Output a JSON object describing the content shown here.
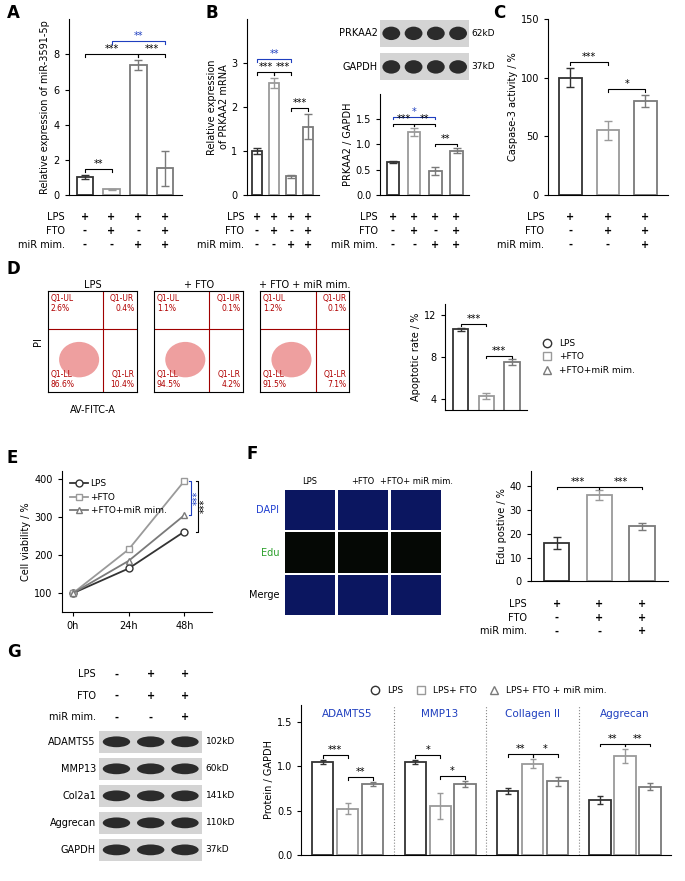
{
  "chart_data": [
    {
      "panel": "A",
      "type": "bar",
      "ylabel": "Relative expression of miR-3591-5p",
      "categories": [
        null,
        null,
        null,
        null
      ],
      "values": [
        1.0,
        0.3,
        7.4,
        1.5
      ],
      "errors": [
        0.12,
        0.05,
        0.3,
        1.0
      ],
      "colors": [
        "#333333",
        "#9a9a9a",
        "#7a7a7a",
        "#7a7a7a"
      ],
      "ylim": [
        0,
        10
      ],
      "yticks": [
        0,
        2,
        4,
        6,
        8
      ],
      "tick_labels": "y",
      "conditions": [
        {
          "name": "LPS",
          "marks": [
            "+",
            "+",
            "+",
            "+"
          ]
        },
        {
          "name": "FTO",
          "marks": [
            "-",
            "+",
            "-",
            "+"
          ]
        },
        {
          "name": "miR mim.",
          "marks": [
            "-",
            "-",
            "+",
            "+"
          ]
        }
      ],
      "significance": [
        {
          "from": 0,
          "to": 1,
          "label": "**",
          "color": "#000000"
        },
        {
          "from": 0,
          "to": 2,
          "label": "***",
          "color": "#000000"
        },
        {
          "from": 2,
          "to": 3,
          "label": "***",
          "color": "#000000"
        },
        {
          "from": 1,
          "to": 3,
          "label": "**",
          "color": "#1f3fbf"
        }
      ]
    },
    {
      "type": "bar",
      "ylabel": "Relative expression\nof PRKAA2 mRNA",
      "categories": [
        null,
        null,
        null,
        null
      ],
      "values": [
        1.0,
        2.55,
        0.42,
        1.55
      ],
      "errors": [
        0.06,
        0.12,
        0.04,
        0.28
      ],
      "colors": [
        "#333333",
        "#9a9a9a",
        "#7a7a7a",
        "#7a7a7a"
      ],
      "ylim": [
        0,
        4
      ],
      "yticks": [
        0,
        1,
        2,
        3
      ],
      "tick_labels": "y",
      "conditions": [
        {
          "name": "LPS",
          "marks": [
            "+",
            "+",
            "+",
            "+"
          ]
        },
        {
          "name": "FTO",
          "marks": [
            "-",
            "+",
            "-",
            "+"
          ]
        },
        {
          "name": "miR mim.",
          "marks": [
            "-",
            "-",
            "+",
            "+"
          ]
        }
      ],
      "significance": [
        {
          "from": 0,
          "to": 1,
          "label": "***",
          "color": "#000000"
        },
        {
          "from": 1,
          "to": 2,
          "label": "***",
          "color": "#000000"
        },
        {
          "from": 2,
          "to": 3,
          "label": "***",
          "color": "#000000"
        },
        {
          "from": 0,
          "to": 2,
          "label": "**",
          "color": "#1f3fbf"
        }
      ]
    },
    {
      "type": "bar",
      "ylabel": "PRKAA2 / GAPDH",
      "categories": [
        null,
        null,
        null,
        null
      ],
      "values": [
        0.65,
        1.25,
        0.48,
        0.88
      ],
      "errors": [
        0.02,
        0.08,
        0.08,
        0.05
      ],
      "colors": [
        "#333333",
        "#9a9a9a",
        "#7a7a7a",
        "#7a7a7a"
      ],
      "ylim": [
        0,
        2
      ],
      "yticks": [
        0.0,
        0.5,
        1.0,
        1.5
      ],
      "tick_labels": "y",
      "conditions": [
        {
          "name": "LPS",
          "marks": [
            "+",
            "+",
            "+",
            "+"
          ]
        },
        {
          "name": "FTO",
          "marks": [
            "-",
            "+",
            "-",
            "+"
          ]
        },
        {
          "name": "miR mim.",
          "marks": [
            "-",
            "-",
            "+",
            "+"
          ]
        }
      ],
      "significance": [
        {
          "from": 0,
          "to": 1,
          "label": "***",
          "color": "#000000"
        },
        {
          "from": 1,
          "to": 2,
          "label": "**",
          "color": "#000000"
        },
        {
          "from": 2,
          "to": 3,
          "label": "**",
          "color": "#000000"
        },
        {
          "from": 0,
          "to": 2,
          "label": "*",
          "color": "#1f3fbf"
        }
      ]
    },
    {
      "panel": "C",
      "type": "bar",
      "ylabel": "Caspase-3 activity / %",
      "categories": [
        null,
        null,
        null
      ],
      "values": [
        100,
        55,
        80
      ],
      "errors": [
        8,
        8,
        5
      ],
      "colors": [
        "#333333",
        "#9a9a9a",
        "#7a7a7a"
      ],
      "ylim": [
        0,
        150
      ],
      "yticks": [
        0,
        50,
        100,
        150
      ],
      "tick_labels": "y",
      "conditions": [
        {
          "name": "LPS",
          "marks": [
            "+",
            "+",
            "+"
          ]
        },
        {
          "name": "FTO",
          "marks": [
            "-",
            "+",
            "+"
          ]
        },
        {
          "name": "miR mim.",
          "marks": [
            "-",
            "-",
            "+"
          ]
        }
      ],
      "significance": [
        {
          "from": 0,
          "to": 1,
          "label": "***",
          "color": "#000000"
        },
        {
          "from": 1,
          "to": 2,
          "label": "*",
          "color": "#000000"
        }
      ]
    },
    {
      "type": "bar",
      "ylabel": "Apoptotic rate / %",
      "categories": [
        "LPS",
        "+FTO",
        "+FTO+miR mim."
      ],
      "values": [
        10.6,
        4.3,
        7.5
      ],
      "errors": [
        0.15,
        0.3,
        0.25
      ],
      "colors": [
        "#333333",
        "#9a9a9a",
        "#7a7a7a"
      ],
      "ylim": [
        3,
        13
      ],
      "yticks": [
        4,
        8,
        12
      ],
      "tick_labels": "y",
      "legend": "center left",
      "significance": [
        {
          "from": 0,
          "to": 1,
          "label": "***",
          "color": "#000000"
        },
        {
          "from": 1,
          "to": 2,
          "label": "***",
          "color": "#000000"
        }
      ]
    },
    {
      "panel": "E",
      "type": "line",
      "ylabel": "Cell viability / %",
      "categories": [
        "0h",
        "24h",
        "48h"
      ],
      "series": [
        {
          "name": "LPS",
          "color": "#333333",
          "marker": "circle",
          "values": [
            100,
            165,
            262
          ]
        },
        {
          "name": "+FTO",
          "color": "#9a9a9a",
          "marker": "square",
          "values": [
            100,
            215,
            395
          ]
        },
        {
          "name": "+FTO+miR mim.",
          "color": "#7a7a7a",
          "marker": "triangle",
          "values": [
            100,
            185,
            305
          ]
        }
      ],
      "ylim": [
        50,
        420
      ],
      "yticks": [
        100,
        200,
        300,
        400
      ],
      "legend": "upper left",
      "significance": [
        {
          "from": 1,
          "to": 2,
          "label": "***",
          "color": "#1f3fbf"
        },
        {
          "from": 0,
          "to": 1,
          "label": "***",
          "color": "#000000"
        }
      ]
    },
    {
      "type": "bar",
      "ylabel": "Edu postive / %",
      "categories": [
        null,
        null,
        null
      ],
      "values": [
        16,
        36,
        23
      ],
      "errors": [
        2.5,
        2,
        1.5
      ],
      "colors": [
        "#333333",
        "#9a9a9a",
        "#7a7a7a"
      ],
      "ylim": [
        0,
        46
      ],
      "yticks": [
        0,
        10,
        20,
        30,
        40
      ],
      "tick_labels": "y",
      "conditions": [
        {
          "name": "LPS",
          "marks": [
            "+",
            "+",
            "+"
          ]
        },
        {
          "name": "FTO",
          "marks": [
            "-",
            "+",
            "+"
          ]
        },
        {
          "name": "miR mim.",
          "marks": [
            "-",
            "-",
            "+"
          ]
        }
      ],
      "significance": [
        {
          "from": 0,
          "to": 1,
          "label": "***",
          "color": "#000000"
        },
        {
          "from": 1,
          "to": 2,
          "label": "***",
          "color": "#000000"
        }
      ]
    },
    {
      "type": "grouped_bar",
      "ylabel": "Protein / GAPDH",
      "categories": [
        "ADAMTS5",
        "MMP13",
        "Collagen II",
        "Aggrecan"
      ],
      "series": [
        {
          "name": "LPS",
          "color": "#333333",
          "marker": "circle",
          "values": [
            1.05,
            1.05,
            0.72,
            0.62
          ],
          "errors": [
            0.02,
            0.02,
            0.03,
            0.05
          ]
        },
        {
          "name": "LPS+ FTO",
          "color": "#9a9a9a",
          "marker": "square",
          "values": [
            0.52,
            0.55,
            1.03,
            1.12
          ],
          "errors": [
            0.06,
            0.15,
            0.05,
            0.08
          ]
        },
        {
          "name": "LPS+ FTO + miR mim.",
          "color": "#7a7a7a",
          "marker": "triangle",
          "values": [
            0.8,
            0.8,
            0.83,
            0.77
          ],
          "errors": [
            0.02,
            0.03,
            0.05,
            0.04
          ]
        }
      ],
      "ylim": [
        0,
        1.7
      ],
      "yticks": [
        0.0,
        0.5,
        1.0,
        1.5
      ],
      "tick_labels": "y",
      "legend": "lower center",
      "significance": [
        {
          "group": 0,
          "from": 0,
          "to": 1,
          "label": "***",
          "color": "#000000"
        },
        {
          "group": 0,
          "from": 1,
          "to": 2,
          "label": "**",
          "color": "#000000"
        },
        {
          "group": 1,
          "from": 0,
          "to": 1,
          "label": "*",
          "color": "#000000"
        },
        {
          "group": 1,
          "from": 1,
          "to": 2,
          "label": "*",
          "color": "#000000"
        },
        {
          "group": 2,
          "from": 0,
          "to": 1,
          "label": "**",
          "color": "#000000"
        },
        {
          "group": 2,
          "from": 1,
          "to": 2,
          "label": "*",
          "color": "#000000"
        },
        {
          "group": 3,
          "from": 0,
          "to": 1,
          "label": "**",
          "color": "#000000"
        },
        {
          "group": 3,
          "from": 1,
          "to": 2,
          "label": "**",
          "color": "#000000"
        }
      ]
    }
  ],
  "blots": [
    {
      "panel": "B",
      "rows": [
        {
          "name": "PRKAA2",
          "size": "62kD"
        },
        {
          "name": "GAPDH",
          "size": "37kD"
        }
      ]
    },
    {
      "panel": "G",
      "conditions": [
        {
          "name": "LPS",
          "marks": [
            "-",
            "+",
            "+"
          ]
        },
        {
          "name": "FTO",
          "marks": [
            "-",
            "+",
            "+"
          ]
        },
        {
          "name": "miR mim.",
          "marks": [
            "-",
            "-",
            "+"
          ]
        }
      ],
      "rows": [
        {
          "name": "ADAMTS5",
          "size": "102kD"
        },
        {
          "name": "MMP13",
          "size": "60kD"
        },
        {
          "name": "Col2a1",
          "size": "141kD"
        },
        {
          "name": "Aggrecan",
          "size": "110kD"
        },
        {
          "name": "GAPDH",
          "size": "37kD"
        }
      ]
    }
  ],
  "flow": {
    "panel": "D",
    "xlabel": "AV-FITC-A",
    "ylabel": "PI",
    "plots": [
      {
        "title": "LPS",
        "quadrants": [
          {
            "name": "Q1-UL",
            "value": "2.6%"
          },
          {
            "name": "Q1-UR",
            "value": "0.4%"
          },
          {
            "name": "Q1-LL",
            "value": "86.6%"
          },
          {
            "name": "Q1-LR",
            "value": "10.4%"
          }
        ]
      },
      {
        "title": "+ FTO",
        "quadrants": [
          {
            "name": "Q1-UL",
            "value": "1.1%"
          },
          {
            "name": "Q1-UR",
            "value": "0.1%"
          },
          {
            "name": "Q1-LL",
            "value": "94.5%"
          },
          {
            "name": "Q1-LR",
            "value": "4.2%"
          }
        ]
      },
      {
        "title": "+ FTO + miR mim.",
        "quadrants": [
          {
            "name": "Q1-UL",
            "value": "1.2%"
          },
          {
            "name": "Q1-UR",
            "value": "0.1%"
          },
          {
            "name": "Q1-LL",
            "value": "91.5%"
          },
          {
            "name": "Q1-LR",
            "value": "7.1%"
          }
        ]
      }
    ]
  },
  "images": {
    "panel": "F",
    "columns": [
      "LPS",
      "+FTO",
      "+FTO+ miR mim."
    ],
    "rows": [
      {
        "name": "DAPI",
        "color": "#1f3fd0"
      },
      {
        "name": "Edu",
        "color": "#2ca02c"
      },
      {
        "name": "Merge",
        "color": "#000000"
      }
    ]
  }
}
